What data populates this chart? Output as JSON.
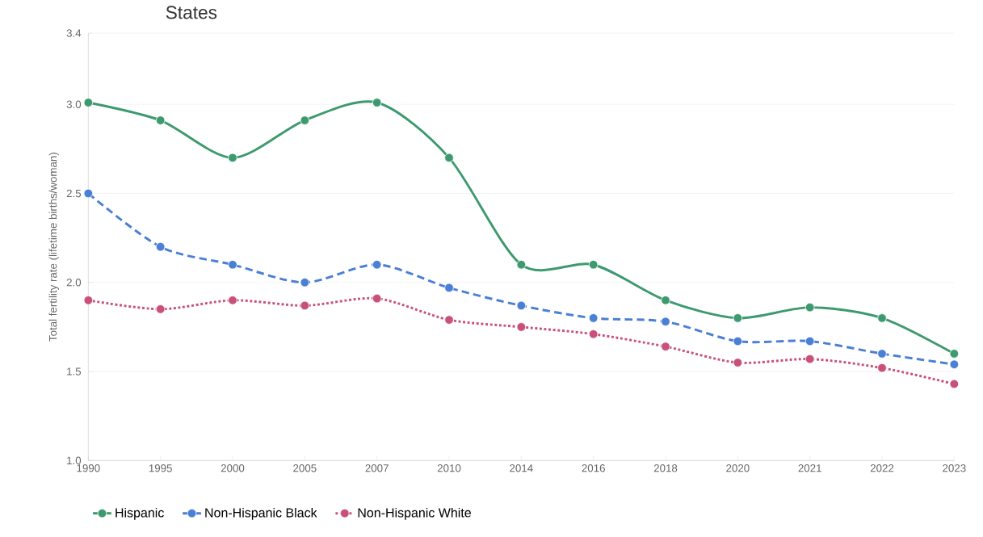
{
  "chart_data": {
    "type": "line",
    "title": "States",
    "ylabel": "Total fertility rate (lifetime births/woman)",
    "categories": [
      "1990",
      "1995",
      "2000",
      "2005",
      "2007",
      "2010",
      "2014",
      "2016",
      "2018",
      "2020",
      "2021",
      "2022",
      "2023"
    ],
    "series": [
      {
        "name": "Hispanic",
        "color": "#3d9a6e",
        "line_style": "solid",
        "values": [
          3.01,
          2.91,
          2.7,
          2.91,
          3.01,
          2.7,
          2.1,
          2.1,
          1.9,
          1.8,
          1.86,
          1.8,
          1.6
        ]
      },
      {
        "name": "Non-Hispanic Black",
        "color": "#4a7fd6",
        "line_style": "dashed",
        "values": [
          2.5,
          2.2,
          2.1,
          2.0,
          2.1,
          1.97,
          1.87,
          1.8,
          1.78,
          1.67,
          1.67,
          1.6,
          1.54
        ]
      },
      {
        "name": "Non-Hispanic White",
        "color": "#c9507a",
        "line_style": "dotted",
        "values": [
          1.9,
          1.85,
          1.9,
          1.87,
          1.91,
          1.79,
          1.75,
          1.71,
          1.64,
          1.55,
          1.57,
          1.52,
          1.43
        ]
      }
    ],
    "ylim": [
      1.0,
      3.4
    ],
    "yticks": [
      {
        "value": 1.0,
        "label": "1.0"
      },
      1.5,
      {
        "value": 2.0,
        "label": "2.0"
      },
      2.5,
      {
        "value": 3.0,
        "label": "3.0"
      },
      3.4
    ],
    "grid": "y",
    "legend": "bottom left",
    "marker": "circle"
  }
}
